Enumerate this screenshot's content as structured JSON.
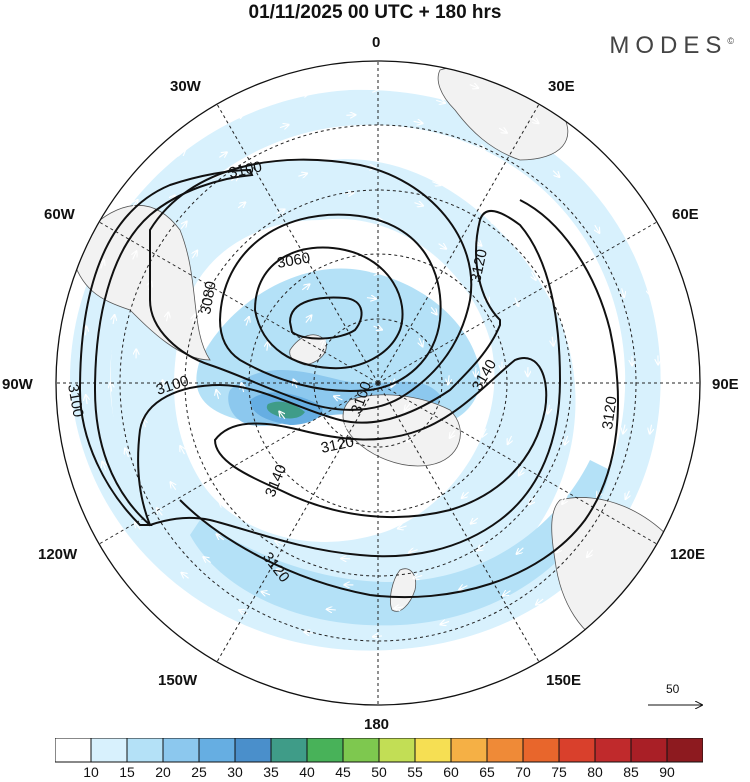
{
  "title": "01/11/2025  00 UTC  + 180 hrs",
  "brand": "MODES",
  "brand_mark": "©",
  "longitude_labels": {
    "n": "0",
    "e30": "30E",
    "e60": "60E",
    "e90": "90E",
    "e120": "120E",
    "e150": "150E",
    "s": "180",
    "w150": "150W",
    "w120": "120W",
    "w90": "90W",
    "w60": "60W",
    "w30": "30W"
  },
  "contour_labels": {
    "c3100_top": "3100",
    "c3060": "3060",
    "c3080": "3080",
    "c3120_ne": "3120",
    "c3140_e": "3140",
    "c3100_center": "3100",
    "c3100_w": "3100",
    "c3120_mid": "3120",
    "c3140_sw": "3140",
    "c3120_s": "3120",
    "c3120_e": "3120",
    "c3100_left": "3100"
  },
  "vector_scale_label": "50",
  "colorbar": {
    "labels": [
      "10",
      "15",
      "20",
      "25",
      "30",
      "35",
      "40",
      "45",
      "50",
      "55",
      "60",
      "65",
      "70",
      "75",
      "80",
      "85",
      "90"
    ],
    "colors": [
      "#ffffff",
      "#d8f1fd",
      "#b4e1f7",
      "#8cc8ee",
      "#66aee2",
      "#4a8fcb",
      "#3f9c88",
      "#48b259",
      "#7ec84f",
      "#c2de55",
      "#f6df53",
      "#f5b045",
      "#ef8a37",
      "#e8662c",
      "#d9402c",
      "#c02a2c",
      "#a91f26",
      "#8d1a1f"
    ]
  },
  "map_colors": {
    "land": "#f2f2f2",
    "speed_15": "#d8f1fd",
    "speed_20": "#b4e1f7",
    "speed_25": "#8cc8ee",
    "speed_30": "#66aee2",
    "speed_40": "#3f9c88"
  }
}
